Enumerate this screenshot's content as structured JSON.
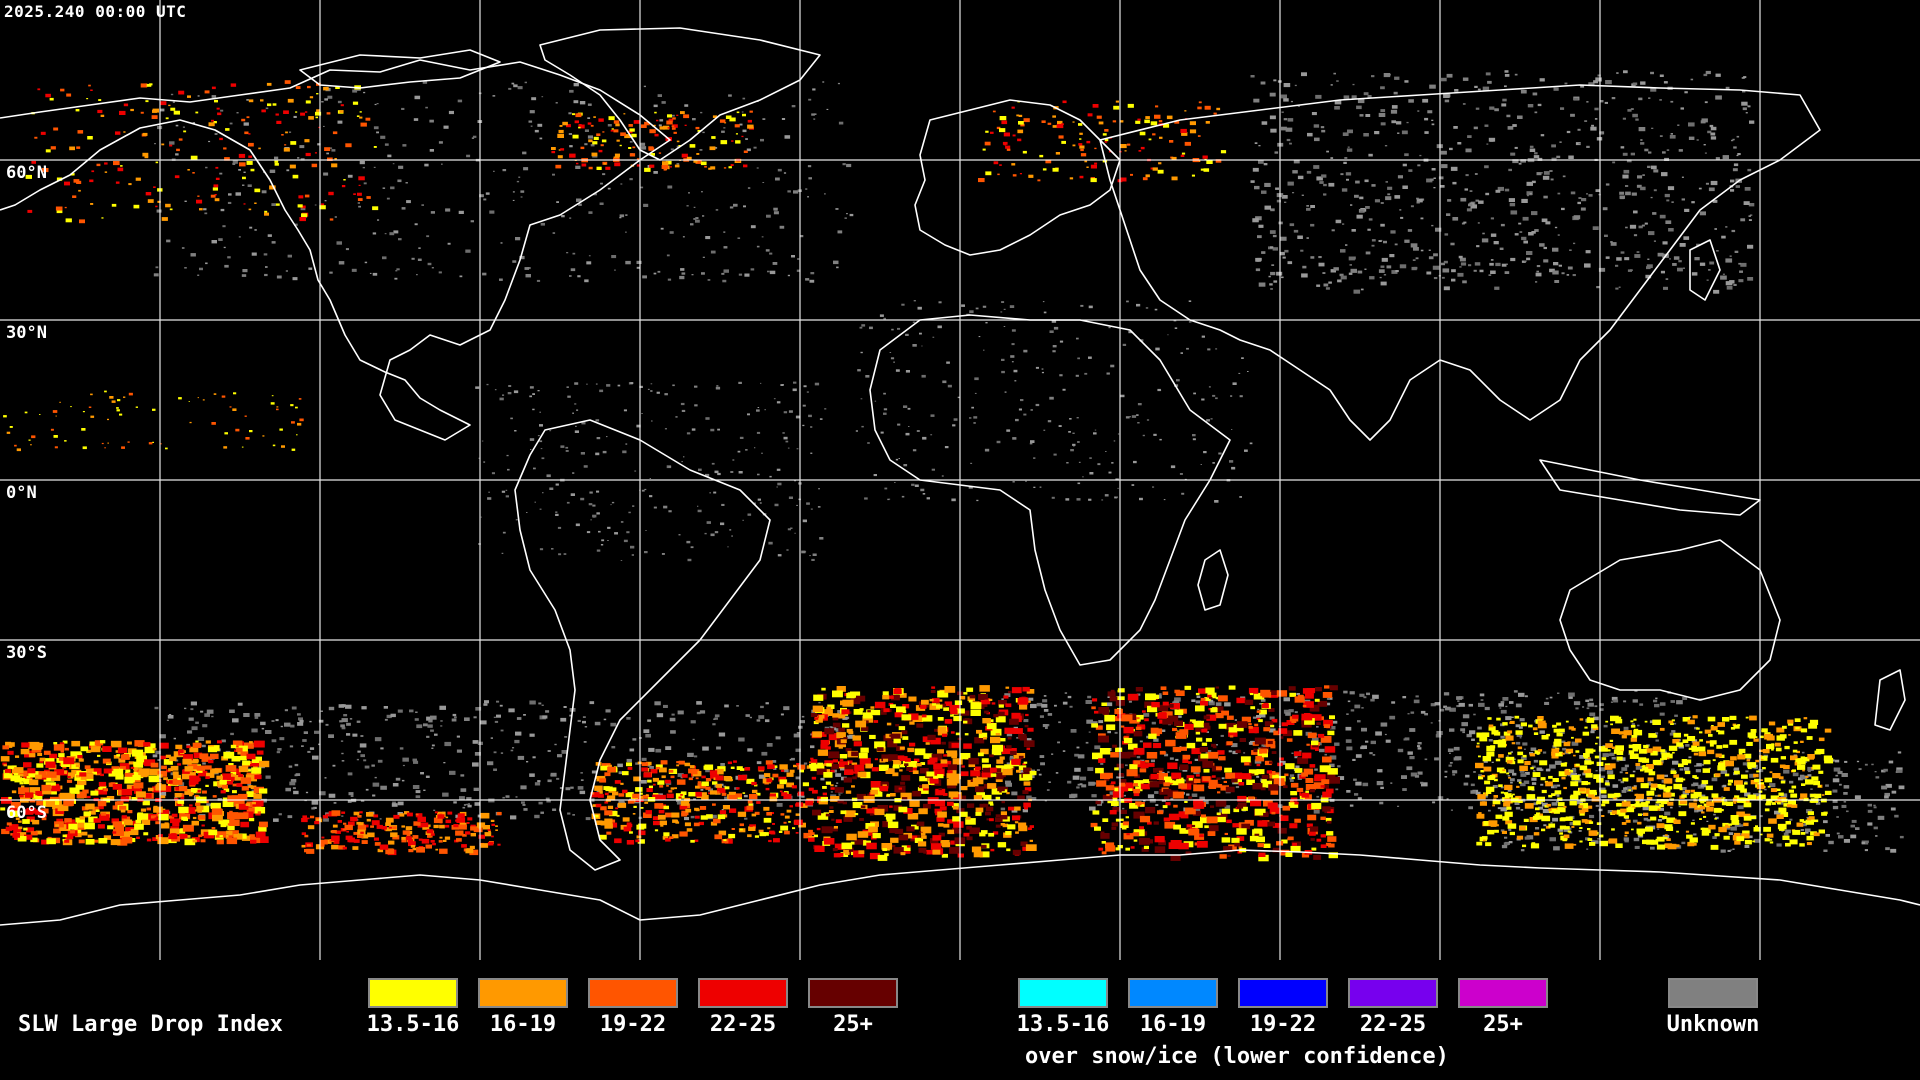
{
  "timestamp": "2025.240 00:00 UTC",
  "lat_labels": [
    "60°N",
    "30°N",
    "0°N",
    "30°S",
    "60°S"
  ],
  "legend": {
    "title": "SLW Large Drop Index",
    "liquid": [
      {
        "label": "13.5-16",
        "color": "#ffff00"
      },
      {
        "label": "16-19",
        "color": "#ff9900"
      },
      {
        "label": "19-22",
        "color": "#ff5500"
      },
      {
        "label": "22-25",
        "color": "#ee0000"
      },
      {
        "label": "25+",
        "color": "#660000"
      }
    ],
    "snow": [
      {
        "label": "13.5-16",
        "color": "#00ffff"
      },
      {
        "label": "16-19",
        "color": "#0088ff"
      },
      {
        "label": "19-22",
        "color": "#0000ff"
      },
      {
        "label": "22-25",
        "color": "#7700ee"
      },
      {
        "label": "25+",
        "color": "#cc00cc"
      }
    ],
    "snow_note": "over snow/ice (lower confidence)",
    "unknown": {
      "label": "Unknown",
      "color": "#808080"
    }
  },
  "colors": {
    "background": "#000000",
    "coastline": "#ffffff",
    "grid": "#ffffff"
  }
}
